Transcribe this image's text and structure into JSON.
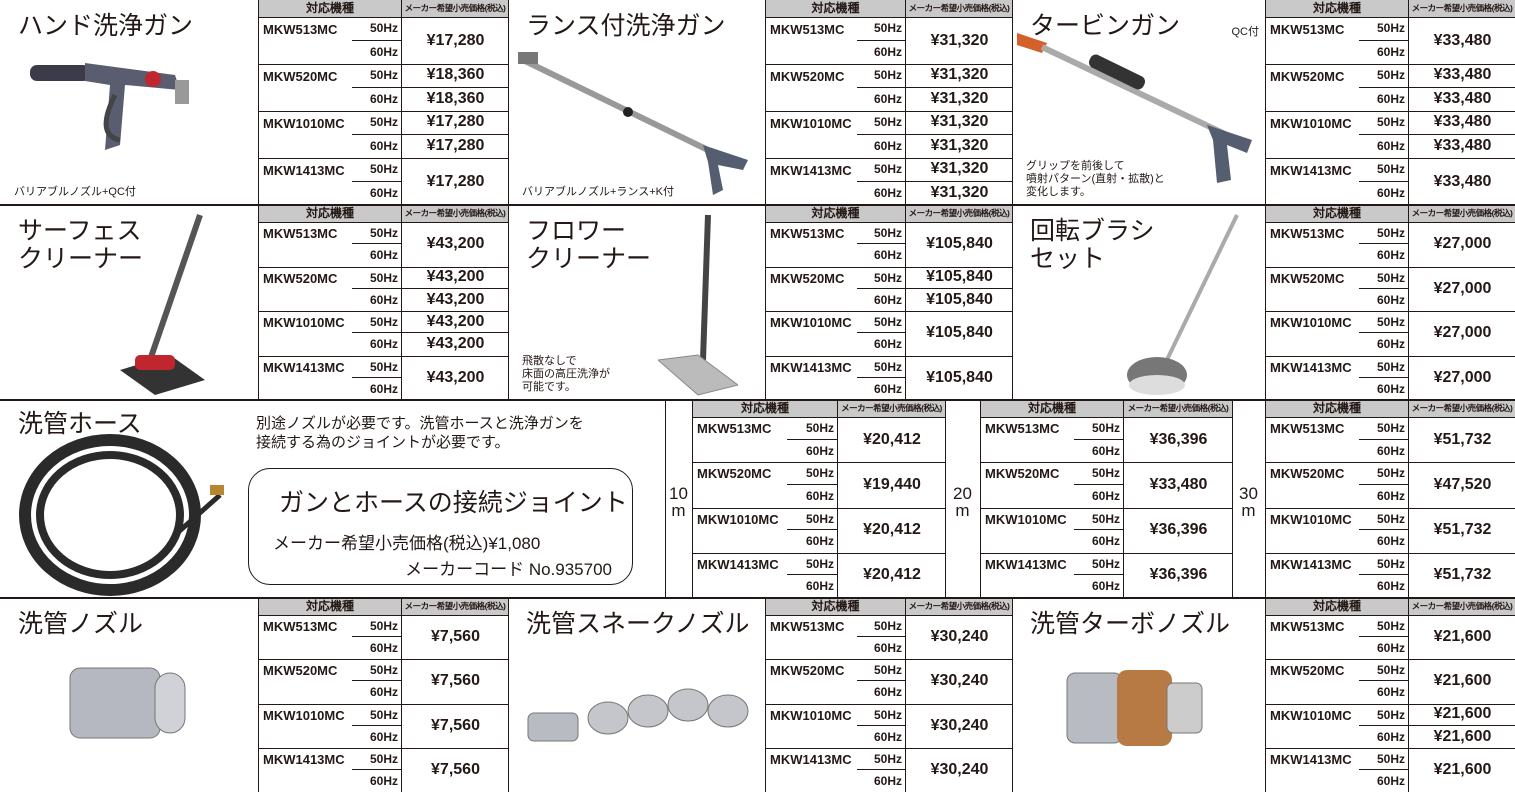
{
  "products": [
    {
      "title": "ハンド洗浄ガン",
      "note": "バリアブルノズル+QC付",
      "table": {
        "headers": [
          "対応機種",
          "メーカー希望小売価格(税込)"
        ],
        "models": [
          {
            "model": "MKW513MC",
            "freqs": [
              "50Hz",
              "60Hz"
            ],
            "prices": [
              "¥17,280"
            ]
          },
          {
            "model": "MKW520MC",
            "freqs": [
              "50Hz",
              "60Hz"
            ],
            "prices": [
              "¥18,360",
              "¥18,360"
            ]
          },
          {
            "model": "MKW1010MC",
            "freqs": [
              "50Hz",
              "60Hz"
            ],
            "prices": [
              "¥17,280",
              "¥17,280"
            ]
          },
          {
            "model": "MKW1413MC",
            "freqs": [
              "50Hz",
              "60Hz"
            ],
            "prices": [
              "¥17,280"
            ]
          }
        ]
      }
    },
    {
      "title": "ランス付洗浄ガン",
      "note": "バリアブルノズル+ランス+K付",
      "table": {
        "headers": [
          "対応機種",
          "メーカー希望小売価格(税込)"
        ],
        "models": [
          {
            "model": "MKW513MC",
            "freqs": [
              "50Hz",
              "60Hz"
            ],
            "prices": [
              "¥31,320"
            ]
          },
          {
            "model": "MKW520MC",
            "freqs": [
              "50Hz",
              "60Hz"
            ],
            "prices": [
              "¥31,320",
              "¥31,320"
            ]
          },
          {
            "model": "MKW1010MC",
            "freqs": [
              "50Hz",
              "60Hz"
            ],
            "prices": [
              "¥31,320",
              "¥31,320"
            ]
          },
          {
            "model": "MKW1413MC",
            "freqs": [
              "50Hz",
              "60Hz"
            ],
            "prices": [
              "¥31,320",
              "¥31,320"
            ]
          }
        ]
      }
    },
    {
      "title": "タービンガン",
      "tag": "QC付",
      "note": "グリップを前後して\n噴射パターン(直射・拡散)と\n変化します。",
      "table": {
        "headers": [
          "対応機種",
          "メーカー希望小売価格(税込)"
        ],
        "models": [
          {
            "model": "MKW513MC",
            "freqs": [
              "50Hz",
              "60Hz"
            ],
            "prices": [
              "¥33,480"
            ]
          },
          {
            "model": "MKW520MC",
            "freqs": [
              "50Hz",
              "60Hz"
            ],
            "prices": [
              "¥33,480",
              "¥33,480"
            ]
          },
          {
            "model": "MKW1010MC",
            "freqs": [
              "50Hz",
              "60Hz"
            ],
            "prices": [
              "¥33,480",
              "¥33,480"
            ]
          },
          {
            "model": "MKW1413MC",
            "freqs": [
              "50Hz",
              "60Hz"
            ],
            "prices": [
              "¥33,480"
            ]
          }
        ]
      }
    },
    {
      "title": "サーフェス\nクリーナー",
      "table": {
        "headers": [
          "対応機種",
          "メーカー希望小売価格(税込)"
        ],
        "models": [
          {
            "model": "MKW513MC",
            "freqs": [
              "50Hz",
              "60Hz"
            ],
            "prices": [
              "¥43,200"
            ]
          },
          {
            "model": "MKW520MC",
            "freqs": [
              "50Hz",
              "60Hz"
            ],
            "prices": [
              "¥43,200",
              "¥43,200"
            ]
          },
          {
            "model": "MKW1010MC",
            "freqs": [
              "50Hz",
              "60Hz"
            ],
            "prices": [
              "¥43,200",
              "¥43,200"
            ]
          },
          {
            "model": "MKW1413MC",
            "freqs": [
              "50Hz",
              "60Hz"
            ],
            "prices": [
              "¥43,200"
            ]
          }
        ]
      }
    },
    {
      "title": "フロワー\nクリーナー",
      "note": "飛散なしで\n床面の高圧洗浄が\n可能です。",
      "table": {
        "headers": [
          "対応機種",
          "メーカー希望小売価格(税込)"
        ],
        "models": [
          {
            "model": "MKW513MC",
            "freqs": [
              "50Hz",
              "60Hz"
            ],
            "prices": [
              "¥105,840"
            ]
          },
          {
            "model": "MKW520MC",
            "freqs": [
              "50Hz",
              "60Hz"
            ],
            "prices": [
              "¥105,840",
              "¥105,840"
            ]
          },
          {
            "model": "MKW1010MC",
            "freqs": [
              "50Hz",
              "60Hz"
            ],
            "prices": [
              "¥105,840"
            ]
          },
          {
            "model": "MKW1413MC",
            "freqs": [
              "50Hz",
              "60Hz"
            ],
            "prices": [
              "¥105,840"
            ]
          }
        ]
      }
    },
    {
      "title": "回転ブラシ\nセット",
      "table": {
        "headers": [
          "対応機種",
          "メーカー希望小売価格(税込)"
        ],
        "models": [
          {
            "model": "MKW513MC",
            "freqs": [
              "50Hz",
              "60Hz"
            ],
            "prices": [
              "¥27,000"
            ]
          },
          {
            "model": "MKW520MC",
            "freqs": [
              "50Hz",
              "60Hz"
            ],
            "prices": [
              "¥27,000"
            ]
          },
          {
            "model": "MKW1010MC",
            "freqs": [
              "50Hz",
              "60Hz"
            ],
            "prices": [
              "¥27,000"
            ]
          },
          {
            "model": "MKW1413MC",
            "freqs": [
              "50Hz",
              "60Hz"
            ],
            "prices": [
              "¥27,000"
            ]
          }
        ]
      }
    },
    {
      "title": "洗管ノズル",
      "table": {
        "headers": [
          "対応機種",
          "メーカー希望小売価格(税込)"
        ],
        "models": [
          {
            "model": "MKW513MC",
            "freqs": [
              "50Hz",
              "60Hz"
            ],
            "prices": [
              "¥7,560"
            ]
          },
          {
            "model": "MKW520MC",
            "freqs": [
              "50Hz",
              "60Hz"
            ],
            "prices": [
              "¥7,560"
            ]
          },
          {
            "model": "MKW1010MC",
            "freqs": [
              "50Hz",
              "60Hz"
            ],
            "prices": [
              "¥7,560"
            ]
          },
          {
            "model": "MKW1413MC",
            "freqs": [
              "50Hz",
              "60Hz"
            ],
            "prices": [
              "¥7,560"
            ]
          }
        ]
      }
    },
    {
      "title": "洗管スネークノズル",
      "table": {
        "headers": [
          "対応機種",
          "メーカー希望小売価格(税込)"
        ],
        "models": [
          {
            "model": "MKW513MC",
            "freqs": [
              "50Hz",
              "60Hz"
            ],
            "prices": [
              "¥30,240"
            ]
          },
          {
            "model": "MKW520MC",
            "freqs": [
              "50Hz",
              "60Hz"
            ],
            "prices": [
              "¥30,240"
            ]
          },
          {
            "model": "MKW1010MC",
            "freqs": [
              "50Hz",
              "60Hz"
            ],
            "prices": [
              "¥30,240"
            ]
          },
          {
            "model": "MKW1413MC",
            "freqs": [
              "50Hz",
              "60Hz"
            ],
            "prices": [
              "¥30,240"
            ]
          }
        ]
      }
    },
    {
      "title": "洗管ターボノズル",
      "table": {
        "headers": [
          "対応機種",
          "メーカー希望小売価格(税込)"
        ],
        "models": [
          {
            "model": "MKW513MC",
            "freqs": [
              "50Hz",
              "60Hz"
            ],
            "prices": [
              "¥21,600"
            ]
          },
          {
            "model": "MKW520MC",
            "freqs": [
              "50Hz",
              "60Hz"
            ],
            "prices": [
              "¥21,600"
            ]
          },
          {
            "model": "MKW1010MC",
            "freqs": [
              "50Hz",
              "60Hz"
            ],
            "prices": [
              "¥21,600",
              "¥21,600"
            ]
          },
          {
            "model": "MKW1413MC",
            "freqs": [
              "50Hz",
              "60Hz"
            ],
            "prices": [
              "¥21,600"
            ]
          }
        ]
      }
    }
  ],
  "hose": {
    "title": "洗管ホース",
    "note": "別途ノズルが必要です。洗管ホースと洗浄ガンを\n接続する為のジョイントが必要です。",
    "joint": {
      "title": "ガンとホースの接続ジョイント",
      "price": "メーカー希望小売価格(税込)¥1,080",
      "code": "メーカーコード No.935700"
    },
    "tables": [
      {
        "length": "10m",
        "headers": [
          "対応機種",
          "メーカー希望小売価格(税込)"
        ],
        "models": [
          {
            "model": "MKW513MC",
            "freqs": [
              "50Hz",
              "60Hz"
            ],
            "prices": [
              "¥20,412"
            ]
          },
          {
            "model": "MKW520MC",
            "freqs": [
              "50Hz",
              "60Hz"
            ],
            "prices": [
              "¥19,440"
            ]
          },
          {
            "model": "MKW1010MC",
            "freqs": [
              "50Hz",
              "60Hz"
            ],
            "prices": [
              "¥20,412"
            ]
          },
          {
            "model": "MKW1413MC",
            "freqs": [
              "50Hz",
              "60Hz"
            ],
            "prices": [
              "¥20,412"
            ]
          }
        ]
      },
      {
        "length": "20m",
        "headers": [
          "対応機種",
          "メーカー希望小売価格(税込)"
        ],
        "models": [
          {
            "model": "MKW513MC",
            "freqs": [
              "50Hz",
              "60Hz"
            ],
            "prices": [
              "¥36,396"
            ]
          },
          {
            "model": "MKW520MC",
            "freqs": [
              "50Hz",
              "60Hz"
            ],
            "prices": [
              "¥33,480"
            ]
          },
          {
            "model": "MKW1010MC",
            "freqs": [
              "50Hz",
              "60Hz"
            ],
            "prices": [
              "¥36,396"
            ]
          },
          {
            "model": "MKW1413MC",
            "freqs": [
              "50Hz",
              "60Hz"
            ],
            "prices": [
              "¥36,396"
            ]
          }
        ]
      },
      {
        "length": "30m",
        "headers": [
          "対応機種",
          "メーカー希望小売価格(税込)"
        ],
        "models": [
          {
            "model": "MKW513MC",
            "freqs": [
              "50Hz",
              "60Hz"
            ],
            "prices": [
              "¥51,732"
            ]
          },
          {
            "model": "MKW520MC",
            "freqs": [
              "50Hz",
              "60Hz"
            ],
            "prices": [
              "¥47,520"
            ]
          },
          {
            "model": "MKW1010MC",
            "freqs": [
              "50Hz",
              "60Hz"
            ],
            "prices": [
              "¥51,732"
            ]
          },
          {
            "model": "MKW1413MC",
            "freqs": [
              "50Hz",
              "60Hz"
            ],
            "prices": [
              "¥51,732"
            ]
          }
        ]
      }
    ]
  }
}
